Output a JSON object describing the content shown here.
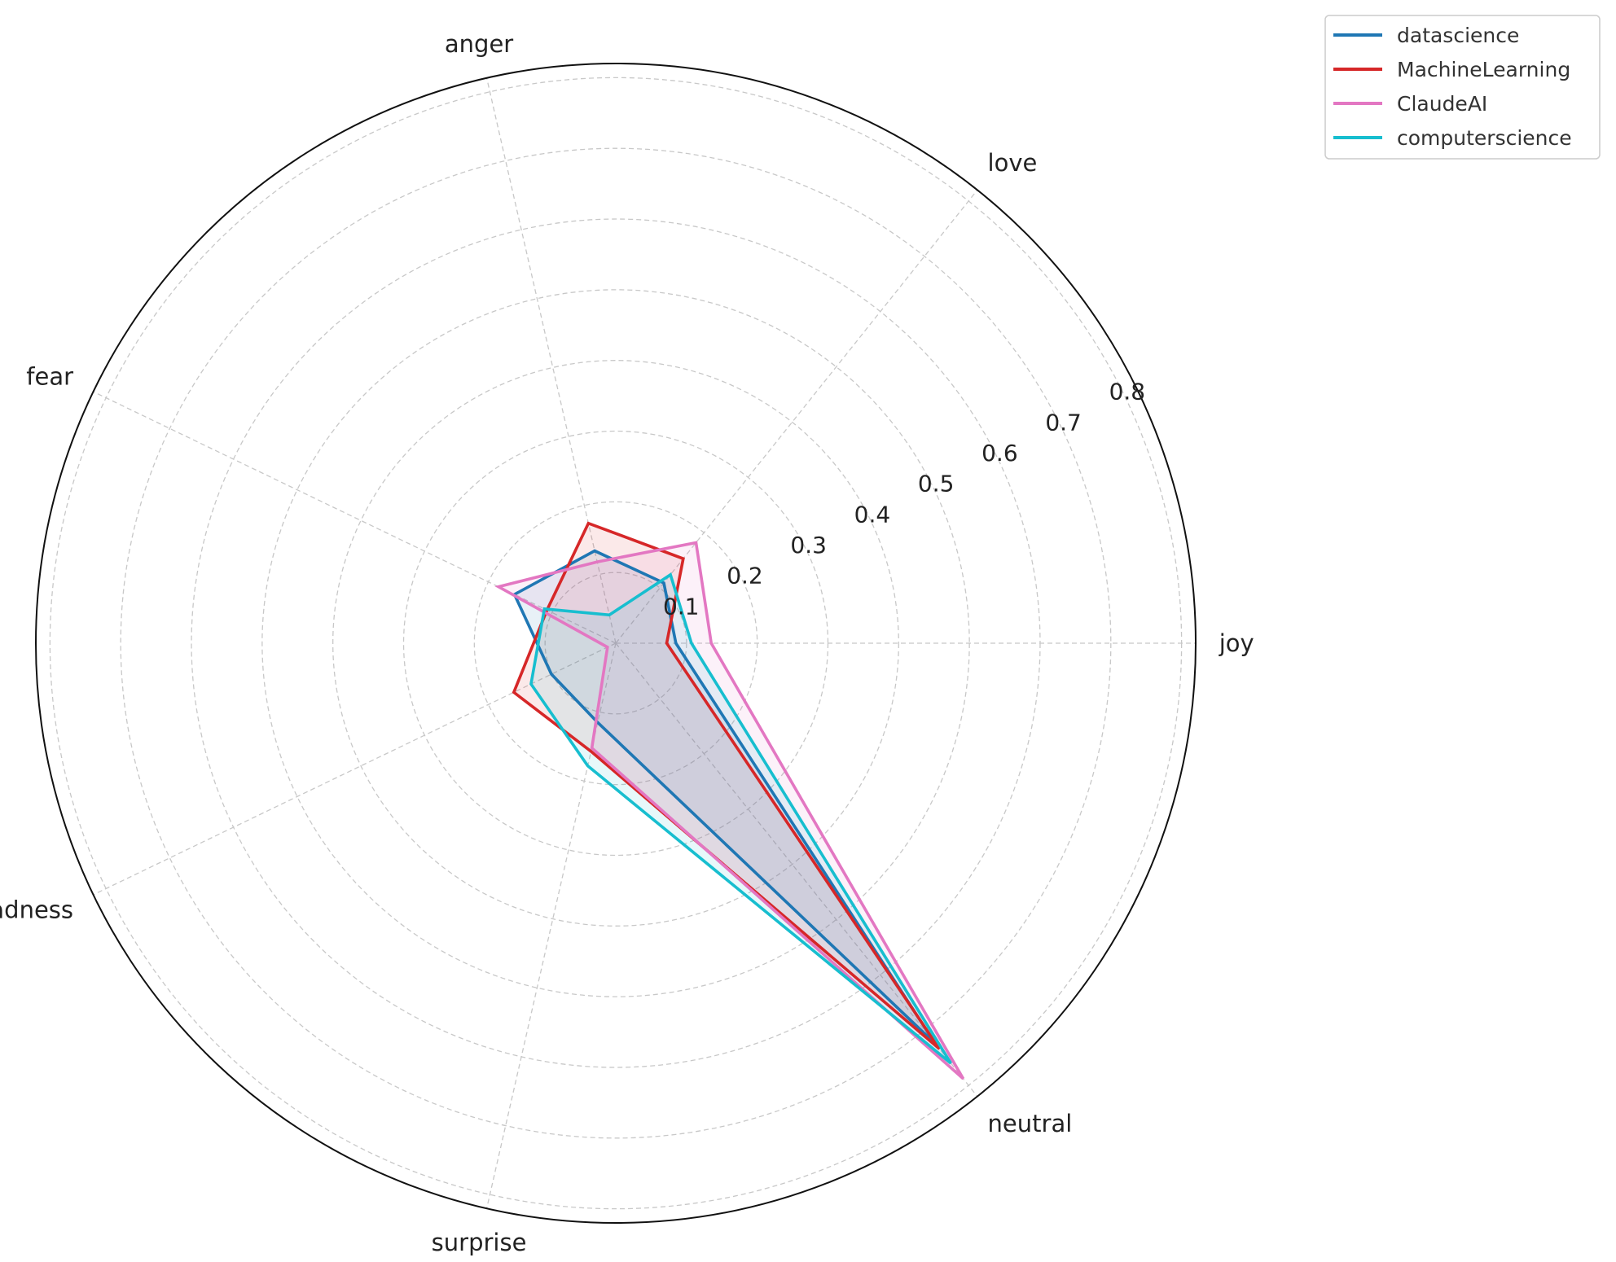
{
  "chart_data": {
    "type": "radar",
    "title": "",
    "categories": [
      "joy",
      "love",
      "anger",
      "fear",
      "sadness",
      "surprise",
      "neutral"
    ],
    "rlim": [
      0,
      0.82
    ],
    "rticks": [
      0.1,
      0.2,
      0.3,
      0.4,
      0.5,
      0.6,
      0.7,
      0.8
    ],
    "rtick_labels": [
      "0.1",
      "0.2",
      "0.3",
      "0.4",
      "0.5",
      "0.6",
      "0.7",
      "0.8"
    ],
    "grid": true,
    "legend_position": "top-right outside",
    "series": [
      {
        "name": "datascience",
        "color": "#1f77b4",
        "values": [
          0.085,
          0.109,
          0.134,
          0.159,
          0.101,
          0.115,
          0.725
        ]
      },
      {
        "name": "MachineLearning",
        "color": "#d62728",
        "values": [
          0.072,
          0.153,
          0.174,
          0.108,
          0.16,
          0.157,
          0.734
        ]
      },
      {
        "name": "ClaudeAI",
        "color": "#e377c2",
        "values": [
          0.135,
          0.182,
          0.118,
          0.184,
          0.013,
          0.152,
          0.788
        ]
      },
      {
        "name": "computerscience",
        "color": "#17becf",
        "values": [
          0.107,
          0.124,
          0.041,
          0.112,
          0.133,
          0.178,
          0.76
        ]
      }
    ]
  }
}
